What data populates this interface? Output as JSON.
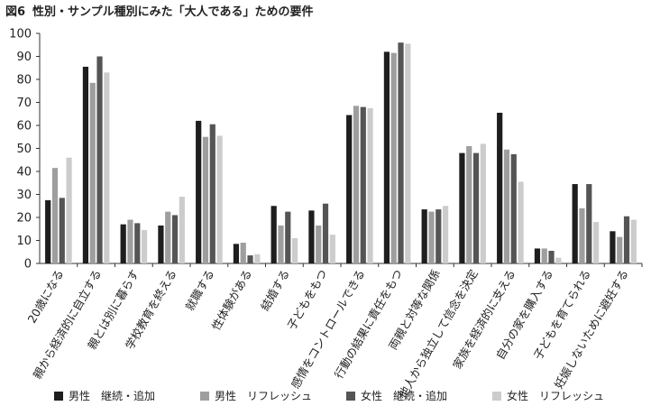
{
  "title": {
    "fig": "図6",
    "text": "性別・サンプル種別にみた「大人である」ための要件"
  },
  "chart_data": {
    "type": "bar",
    "title": "性別・サンプル種別にみた「大人である」ための要件",
    "ylim": [
      0,
      100
    ],
    "yticks": [
      0,
      10,
      20,
      30,
      40,
      50,
      60,
      70,
      80,
      90,
      100
    ],
    "grid": false,
    "legend_position": "bottom",
    "categories": [
      "20歳になる",
      "親から経済的に自立する",
      "親とは別に暮らす",
      "学校教育を終える",
      "就職する",
      "性体験がある",
      "結婚する",
      "子どもをもつ",
      "感情をコントロールできる",
      "行動の結果に責任をもつ",
      "両親と対等な関係",
      "他人から独立して信念を決定",
      "家族を経済的に支える",
      "自分の家を購入する",
      "子どもを育てられる",
      "妊娠しないために避妊する"
    ],
    "series": [
      {
        "name": "男性　継続・追加",
        "color": "#1e1e1e",
        "values": [
          27.5,
          85.5,
          17,
          16.5,
          62,
          8.5,
          25,
          23,
          64.5,
          92,
          23.5,
          48,
          65.5,
          6.5,
          34.5,
          14
        ]
      },
      {
        "name": "男性　リフレッシュ",
        "color": "#9e9e9e",
        "values": [
          41.5,
          78.5,
          19,
          22.5,
          55,
          9,
          16.5,
          16.5,
          68.5,
          91.5,
          22.5,
          51,
          49.5,
          6.5,
          24,
          11.5
        ]
      },
      {
        "name": "女性　継続・追加",
        "color": "#555555",
        "values": [
          28.5,
          90,
          17.5,
          21,
          60.5,
          3.5,
          22.5,
          26,
          68,
          96,
          23.5,
          48,
          47.5,
          5.5,
          34.5,
          20.5
        ]
      },
      {
        "name": "女性　リフレッシュ",
        "color": "#cccccc",
        "values": [
          46,
          83,
          14.5,
          29,
          55.5,
          4,
          11,
          12.5,
          67.5,
          95.5,
          25,
          52,
          35.5,
          2.5,
          18,
          19
        ]
      }
    ]
  }
}
